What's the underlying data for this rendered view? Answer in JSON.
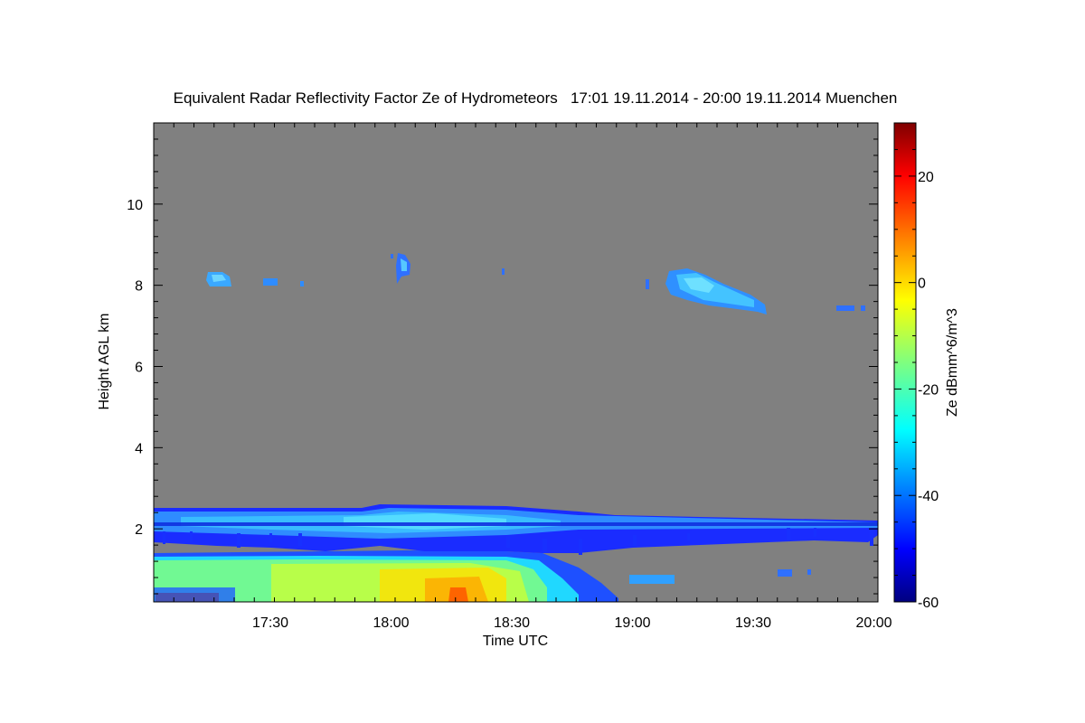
{
  "chart_data": {
    "type": "heatmap",
    "title": "Equivalent Radar Reflectivity Factor Ze of Hydrometeors   17:01 19.11.2014 - 20:00 19.11.2014 Muenchen",
    "xlabel": "Time UTC",
    "ylabel": "Height AGL km",
    "xlim": [
      "17:01",
      "20:01"
    ],
    "ylim": [
      0.2,
      12.0
    ],
    "x_ticks": [
      "17:30",
      "18:00",
      "18:30",
      "19:00",
      "19:30",
      "20:00"
    ],
    "y_ticks": [
      "2",
      "4",
      "6",
      "8",
      "10"
    ],
    "colorbar": {
      "label": "Ze dBmm^6/m^3",
      "range": [
        -60,
        30
      ],
      "ticks": [
        "20",
        "0",
        "-20",
        "-40",
        "-60"
      ],
      "colormap": "jet"
    },
    "background_color": "#808080",
    "echo_regions": [
      {
        "t_start": "17:01",
        "t_end": "18:52",
        "h_bottom": 0.2,
        "h_top": 1.4,
        "ze_typical": -10
      },
      {
        "t_start": "17:01",
        "t_end": "20:01",
        "h_bottom": 1.6,
        "h_top": 2.5,
        "ze_typical": -38
      },
      {
        "t_start": "18:05",
        "t_end": "18:40",
        "h_bottom": 0.2,
        "h_top": 1.2,
        "ze_typical": 0
      },
      {
        "t_start": "17:14",
        "t_end": "17:19",
        "h_bottom": 8.0,
        "h_top": 8.3,
        "ze_typical": -33
      },
      {
        "t_start": "17:25",
        "t_end": "17:28",
        "h_bottom": 8.0,
        "h_top": 8.1,
        "ze_typical": -35
      },
      {
        "t_start": "18:02",
        "t_end": "18:04",
        "h_bottom": 8.2,
        "h_top": 8.7,
        "ze_typical": -35
      },
      {
        "t_start": "19:09",
        "t_end": "19:35",
        "h_bottom": 7.3,
        "h_top": 8.3,
        "ze_typical": -30
      },
      {
        "t_start": "19:49",
        "t_end": "19:57",
        "h_bottom": 7.4,
        "h_top": 7.5,
        "ze_typical": -40
      },
      {
        "t_start": "19:04",
        "t_end": "19:13",
        "h_bottom": 0.7,
        "h_top": 0.8,
        "ze_typical": -38
      }
    ]
  }
}
